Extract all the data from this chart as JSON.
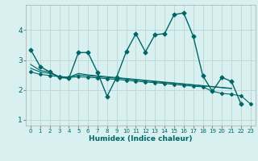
{
  "title": "",
  "xlabel": "Humidex (Indice chaleur)",
  "ylabel": "",
  "background_color": "#d8f0f0",
  "grid_color": "#c0d8d8",
  "line_color": "#006666",
  "xlim": [
    -0.5,
    23.5
  ],
  "ylim": [
    0.8,
    4.85
  ],
  "xticks": [
    0,
    1,
    2,
    3,
    4,
    5,
    6,
    7,
    8,
    9,
    10,
    11,
    12,
    13,
    14,
    15,
    16,
    17,
    18,
    19,
    20,
    21,
    22,
    23
  ],
  "yticks": [
    1,
    2,
    3,
    4
  ],
  "series": [
    {
      "x": [
        0,
        1,
        2,
        3,
        4,
        5,
        6,
        7,
        8,
        9,
        10,
        11,
        12,
        13,
        14,
        15,
        16,
        17,
        18,
        19,
        20,
        21,
        22
      ],
      "y": [
        3.35,
        2.78,
        2.6,
        2.42,
        2.38,
        3.25,
        3.25,
        2.58,
        1.78,
        2.43,
        3.28,
        3.88,
        3.27,
        3.85,
        3.88,
        4.52,
        4.58,
        3.8,
        2.47,
        1.95,
        2.42,
        2.28,
        1.52
      ],
      "marker": true,
      "linewidth": 1.0,
      "markersize": 2.5
    },
    {
      "x": [
        0,
        1,
        2,
        3,
        4,
        5,
        6,
        7,
        8,
        9,
        10,
        11,
        12,
        13,
        14,
        15,
        16,
        17,
        18,
        19,
        20,
        21
      ],
      "y": [
        2.85,
        2.65,
        2.6,
        2.43,
        2.42,
        2.55,
        2.5,
        2.47,
        2.44,
        2.41,
        2.38,
        2.35,
        2.32,
        2.29,
        2.26,
        2.23,
        2.2,
        2.17,
        2.14,
        2.11,
        2.08,
        2.05
      ],
      "marker": false,
      "linewidth": 0.8,
      "markersize": 0
    },
    {
      "x": [
        0,
        1,
        2,
        3,
        4,
        5,
        6,
        7,
        8,
        9,
        10,
        11,
        12,
        13,
        14,
        15,
        16,
        17,
        18,
        19,
        20,
        21
      ],
      "y": [
        2.72,
        2.6,
        2.55,
        2.45,
        2.42,
        2.5,
        2.47,
        2.44,
        2.41,
        2.39,
        2.36,
        2.33,
        2.3,
        2.27,
        2.24,
        2.22,
        2.19,
        2.16,
        2.13,
        2.1,
        2.07,
        2.04
      ],
      "marker": false,
      "linewidth": 0.8,
      "markersize": 0
    },
    {
      "x": [
        0,
        1,
        2,
        3,
        4,
        5,
        6,
        7,
        8,
        9,
        10,
        11,
        12,
        13,
        14,
        15,
        16,
        17,
        18,
        19,
        20,
        21,
        22,
        23
      ],
      "y": [
        2.6,
        2.52,
        2.48,
        2.44,
        2.41,
        2.44,
        2.42,
        2.4,
        2.37,
        2.35,
        2.32,
        2.29,
        2.26,
        2.24,
        2.21,
        2.18,
        2.15,
        2.12,
        2.1,
        1.95,
        1.88,
        1.85,
        1.8,
        1.52
      ],
      "marker": true,
      "linewidth": 0.8,
      "markersize": 2.0
    }
  ]
}
